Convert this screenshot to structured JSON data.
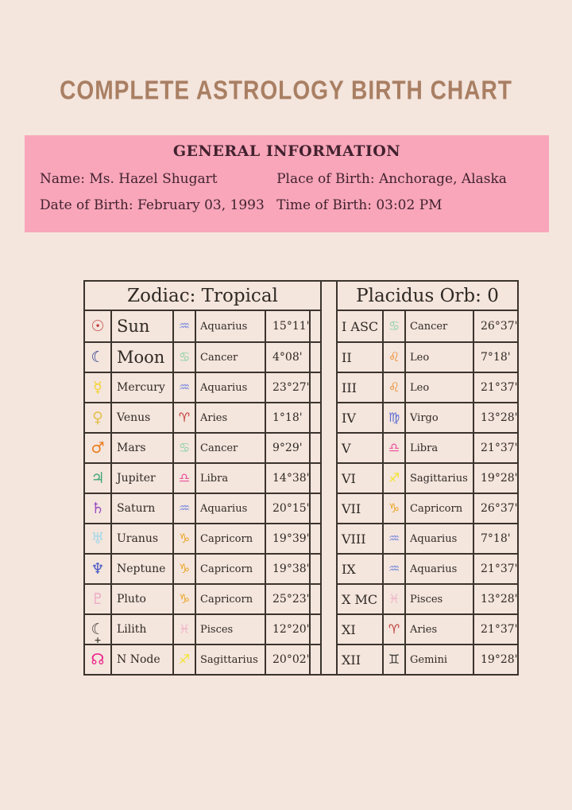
{
  "title": "COMPLETE ASTROLOGY BIRTH CHART",
  "general_info": {
    "title": "GENERAL INFORMATION",
    "name": "Name: Ms. Hazel Shugart",
    "date_of_birth": "Date of Birth: February 03, 1993",
    "place_of_birth": "Place of Birth: Anchorage, Alaska",
    "time_of_birth": "Time of Birth: 03:02 PM"
  },
  "colors": {
    "page_bg": "#f4e5dd",
    "pink_box_bg": "#f9a6ba",
    "title_brown": "#a97f63",
    "table_border": "#3b342d",
    "table_text": "#2f2a24",
    "info_text": "#42222f"
  },
  "zodiac": {
    "header": "Zodiac: Tropical",
    "rows": [
      {
        "planet": "Sun",
        "planet_glyph": "☉",
        "planet_color": "#c23b33",
        "large": true,
        "sign": "Aquarius",
        "sign_glyph": "♒",
        "sign_color": "#7c8fdd",
        "degrees": "15°11'"
      },
      {
        "planet": "Moon",
        "planet_glyph": "☾",
        "planet_color": "#2a3a8c",
        "large": true,
        "sign": "Cancer",
        "sign_glyph": "♋",
        "sign_color": "#90d3a7",
        "degrees": "4°08'"
      },
      {
        "planet": "Mercury",
        "planet_glyph": "☿",
        "planet_color": "#f4d327",
        "large": false,
        "sign": "Aquarius",
        "sign_glyph": "♒",
        "sign_color": "#7c8fdd",
        "degrees": "23°27'"
      },
      {
        "planet": "Venus",
        "planet_glyph": "♀",
        "planet_color": "#e4c050",
        "large": false,
        "sign": "Aries",
        "sign_glyph": "♈",
        "sign_color": "#c23b33",
        "degrees": "1°18'"
      },
      {
        "planet": "Mars",
        "planet_glyph": "♂",
        "planet_color": "#ec7b1c",
        "large": false,
        "sign": "Cancer",
        "sign_glyph": "♋",
        "sign_color": "#90d3a7",
        "degrees": "9°29'"
      },
      {
        "planet": "Jupiter",
        "planet_glyph": "♃",
        "planet_color": "#42a874",
        "large": false,
        "sign": "Libra",
        "sign_glyph": "♎",
        "sign_color": "#ee4f9c",
        "degrees": "14°38'"
      },
      {
        "planet": "Saturn",
        "planet_glyph": "♄",
        "planet_color": "#9a4fc0",
        "large": false,
        "sign": "Aquarius",
        "sign_glyph": "♒",
        "sign_color": "#7c8fdd",
        "degrees": "20°15'"
      },
      {
        "planet": "Uranus",
        "planet_glyph": "♅",
        "planet_color": "#a5d8e8",
        "large": false,
        "sign": "Capricorn",
        "sign_glyph": "♑",
        "sign_color": "#eca726",
        "degrees": "19°39'"
      },
      {
        "planet": "Neptune",
        "planet_glyph": "♆",
        "planet_color": "#4859c4",
        "large": false,
        "sign": "Capricorn",
        "sign_glyph": "♑",
        "sign_color": "#eca726",
        "degrees": "19°38'"
      },
      {
        "planet": "Pluto",
        "planet_glyph": "♇",
        "planet_color": "#f0a9c6",
        "large": false,
        "sign": "Capricorn",
        "sign_glyph": "♑",
        "sign_color": "#eca726",
        "degrees": "25°23'"
      },
      {
        "planet": "Lilith",
        "planet_glyph": "☾",
        "planet_color": "#44403a",
        "glyph_class": "lilith-icon",
        "large": false,
        "sign": "Pisces",
        "sign_glyph": "♓",
        "sign_color": "#f1b4c9",
        "degrees": "12°20'"
      },
      {
        "planet": "N Node",
        "planet_glyph": "☊",
        "planet_color": "#ec1e8a",
        "large": false,
        "sign": "Sagittarius",
        "sign_glyph": "♐",
        "sign_color": "#f3e42e",
        "degrees": "20°02'"
      }
    ]
  },
  "houses": {
    "header": "Placidus Orb: 0",
    "rows": [
      {
        "house": "I ASC",
        "sign": "Cancer",
        "sign_glyph": "♋",
        "sign_color": "#90d3a7",
        "degrees": "26°37'"
      },
      {
        "house": "II",
        "sign": "Leo",
        "sign_glyph": "♌",
        "sign_color": "#ec8b2a",
        "degrees": "7°18'"
      },
      {
        "house": "III",
        "sign": "Leo",
        "sign_glyph": "♌",
        "sign_color": "#ec8b2a",
        "degrees": "21°37'"
      },
      {
        "house": "IV",
        "sign": "Virgo",
        "sign_glyph": "♍",
        "sign_color": "#5c6fd2",
        "degrees": "13°28'"
      },
      {
        "house": "V",
        "sign": "Libra",
        "sign_glyph": "♎",
        "sign_color": "#ee4f9c",
        "degrees": "21°37'"
      },
      {
        "house": "VI",
        "sign": "Sagittarius",
        "sign_glyph": "♐",
        "sign_color": "#f3e42e",
        "degrees": "19°28'"
      },
      {
        "house": "VII",
        "sign": "Capricorn",
        "sign_glyph": "♑",
        "sign_color": "#eca726",
        "degrees": "26°37'"
      },
      {
        "house": "VIII",
        "sign": "Aquarius",
        "sign_glyph": "♒",
        "sign_color": "#7c8fdd",
        "degrees": "7°18'"
      },
      {
        "house": "IX",
        "sign": "Aquarius",
        "sign_glyph": "♒",
        "sign_color": "#7c8fdd",
        "degrees": "21°37'"
      },
      {
        "house": "X MC",
        "sign": "Pisces",
        "sign_glyph": "♓",
        "sign_color": "#f1b4c9",
        "degrees": "13°28'"
      },
      {
        "house": "XI",
        "sign": "Aries",
        "sign_glyph": "♈",
        "sign_color": "#c23b33",
        "degrees": "21°37'"
      },
      {
        "house": "XII",
        "sign": "Gemini",
        "sign_glyph": "♊",
        "sign_color": "#3b3b39",
        "degrees": "19°28'"
      }
    ]
  }
}
